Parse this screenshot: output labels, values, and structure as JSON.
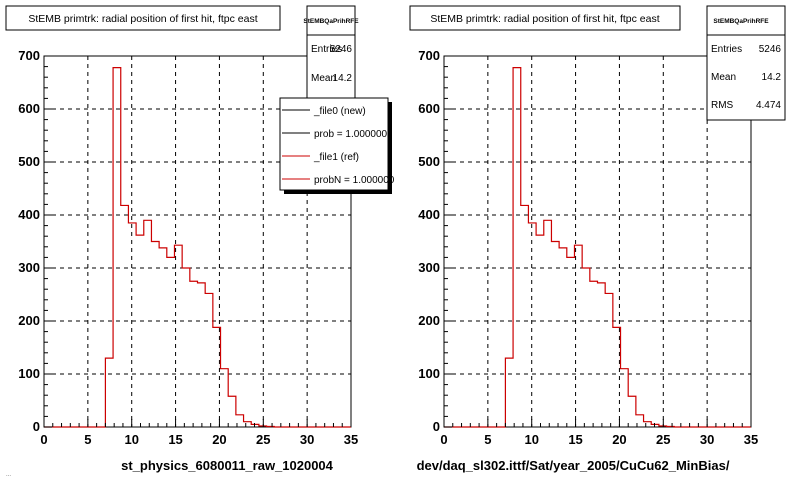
{
  "panels": [
    {
      "title": "StEMB primtrk: radial position of first hit, ftpc east",
      "stats": {
        "name": "StEMBQaPrihRFE",
        "rows": [
          {
            "label": "Entries",
            "value": "5246"
          },
          {
            "label": "Mean",
            "value": "14.2"
          }
        ]
      },
      "legend": {
        "entries": [
          {
            "label": "_file0 (new)",
            "color": "#000000"
          },
          {
            "label": "prob = 1.000000",
            "color": "#000000"
          },
          {
            "label": "_file1 (ref)",
            "color": "#cc0000"
          },
          {
            "label": "probN = 1.000000",
            "color": "#cc0000"
          }
        ]
      },
      "xlabel": "st_physics_6080011_raw_1020004"
    },
    {
      "title": "StEMB primtrk: radial position of first hit, ftpc east",
      "stats": {
        "name": "StEMBQaPrihRFE",
        "rows": [
          {
            "label": "Entries",
            "value": "5246"
          },
          {
            "label": "Mean",
            "value": "14.2"
          },
          {
            "label": "RMS",
            "value": "4.474"
          }
        ]
      },
      "xlabel": "dev/daq_sl302.ittf/Sat/year_2005/CuCu62_MinBias/"
    }
  ],
  "footer_text": "...",
  "chart_data": {
    "type": "histogram",
    "xlim": [
      0,
      35
    ],
    "ylim": [
      0,
      700
    ],
    "x_ticks": [
      0,
      5,
      10,
      15,
      20,
      25,
      30,
      35
    ],
    "y_ticks": [
      0,
      100,
      200,
      300,
      400,
      500,
      600,
      700
    ],
    "grid": true,
    "bin_edges": [
      0,
      0.875,
      1.75,
      2.625,
      3.5,
      4.375,
      5.25,
      6.125,
      7.0,
      7.875,
      8.75,
      9.625,
      10.5,
      11.375,
      12.25,
      13.125,
      14.0,
      14.875,
      15.75,
      16.625,
      17.5,
      18.375,
      19.25,
      20.125,
      21.0,
      21.875,
      22.75,
      23.625,
      24.5,
      25.375,
      26.25,
      27.125,
      28.0,
      28.875,
      29.75,
      30.625,
      31.5,
      32.375,
      33.25,
      34.125,
      35.0
    ],
    "series": [
      {
        "color": "#cc0000",
        "values": [
          0,
          0,
          0,
          0,
          0,
          0,
          0,
          0,
          130,
          678,
          418,
          385,
          362,
          390,
          350,
          338,
          320,
          343,
          300,
          275,
          272,
          252,
          188,
          110,
          58,
          23,
          10,
          5,
          2,
          1,
          0,
          0,
          0,
          0,
          0,
          0,
          0,
          0,
          0,
          0
        ]
      }
    ]
  }
}
